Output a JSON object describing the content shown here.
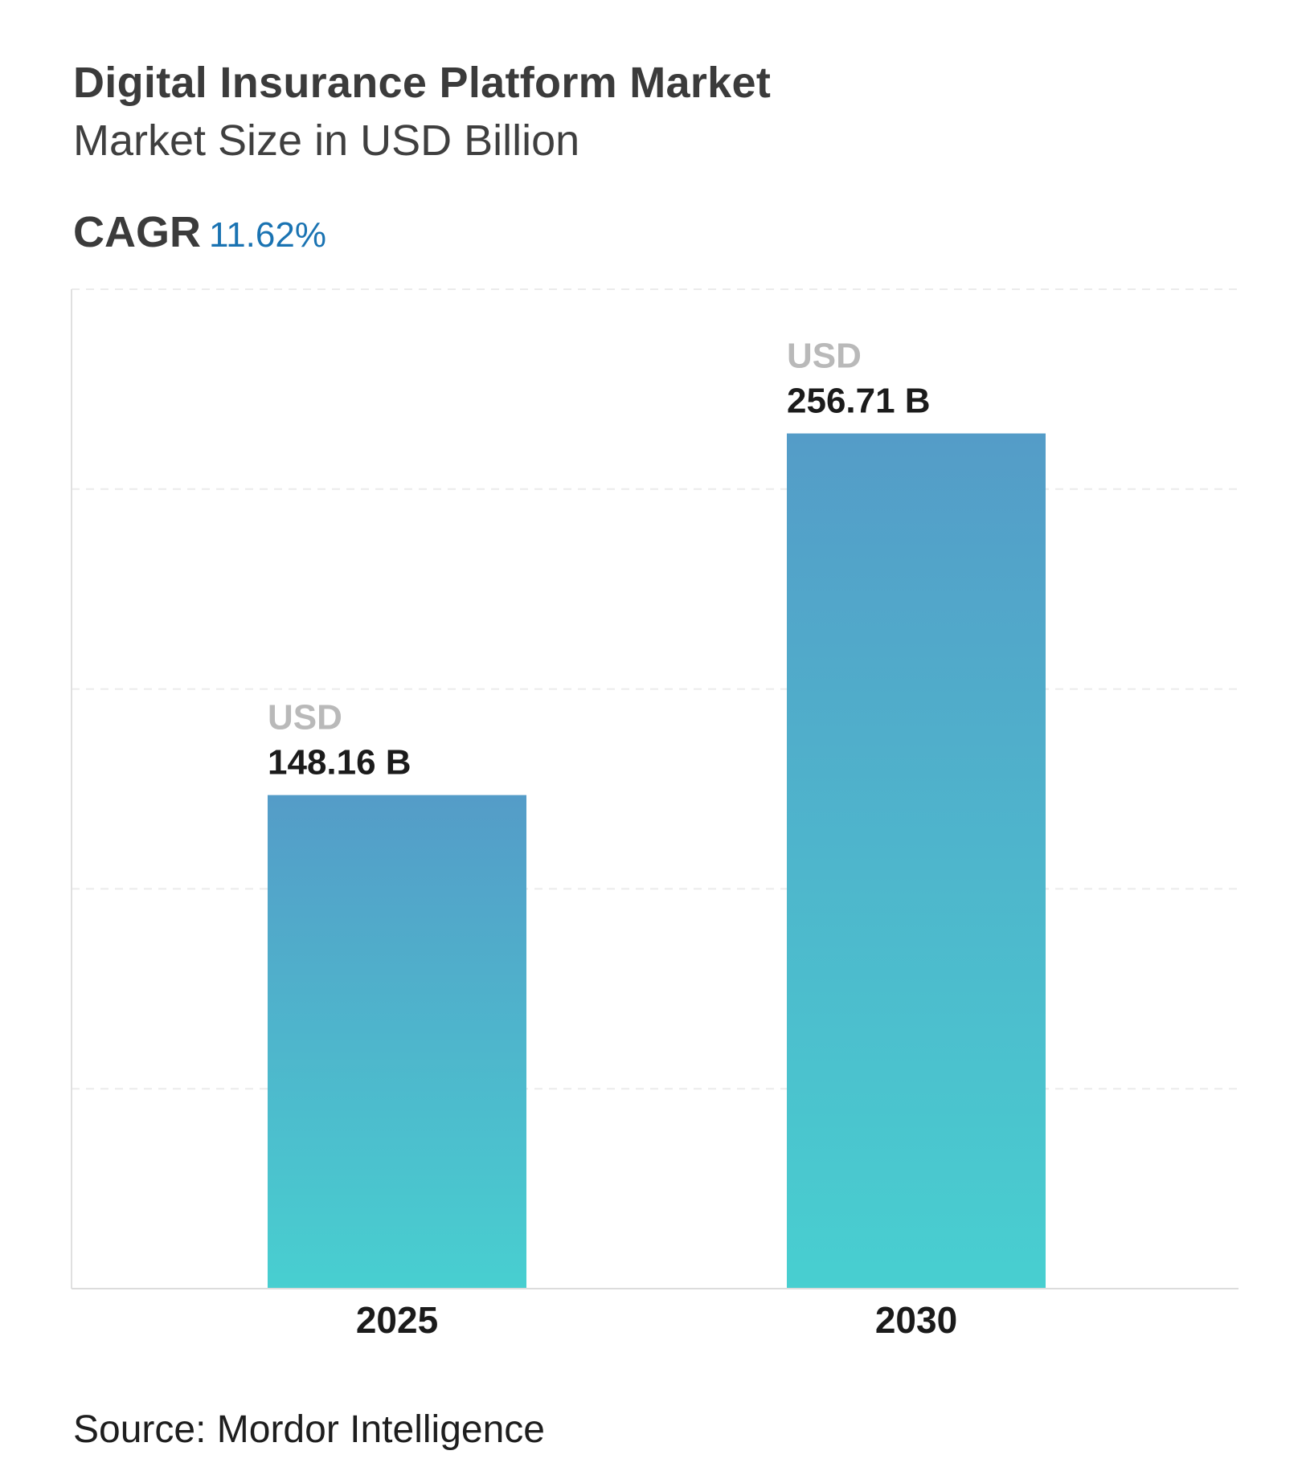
{
  "header": {
    "title": "Digital Insurance Platform Market",
    "subtitle": "Market Size in USD Billion",
    "cagr_label": "CAGR",
    "cagr_value": "11.62%"
  },
  "footer": {
    "source": "Source: Mordor Intelligence"
  },
  "colors": {
    "accent": "#1a73b2",
    "bar_top": "#549cc8",
    "bar_bottom": "#48cfd0"
  },
  "chart_data": {
    "type": "bar",
    "categories": [
      "2025",
      "2030"
    ],
    "values": [
      148.16,
      256.71
    ],
    "value_prefix": "USD",
    "value_labels": [
      "148.16 B",
      "256.71 B"
    ],
    "ylim": [
      0,
      300
    ],
    "grid": true,
    "title": "Digital Insurance Platform Market",
    "xlabel": "",
    "ylabel": ""
  }
}
